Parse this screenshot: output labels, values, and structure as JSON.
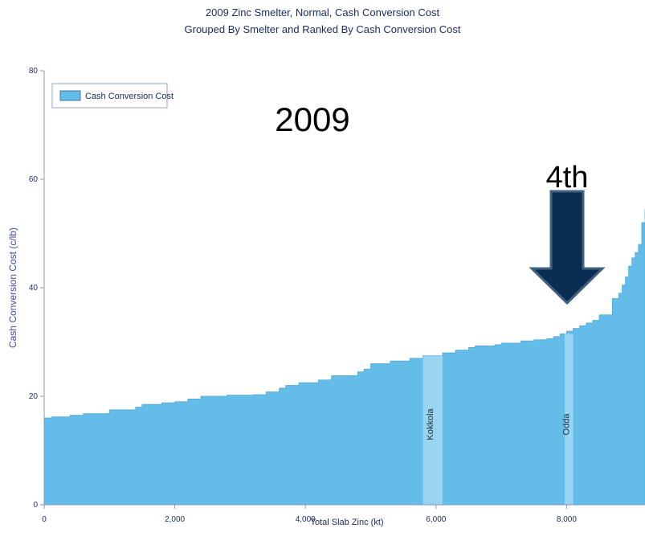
{
  "chart_data": {
    "type": "area",
    "title": "2009 Zinc Smelter, Normal, Cash Conversion Cost",
    "subtitle": "Grouped By Smelter and Ranked By Cash Conversion Cost",
    "xlabel": "Total Slab Zinc (kt)",
    "ylabel": "Cash Conversion Cost (c/lb)",
    "xlim": [
      0,
      9200
    ],
    "ylim": [
      0,
      80
    ],
    "x_ticks": [
      0,
      2000,
      4000,
      6000,
      8000
    ],
    "x_tick_labels": [
      "0",
      "2,000",
      "4,000",
      "6,000",
      "8,000"
    ],
    "y_ticks": [
      0,
      20,
      40,
      60,
      80
    ],
    "y_tick_labels": [
      "0",
      "20",
      "40",
      "60",
      "80"
    ],
    "legend": {
      "entries": [
        "Cash Conversion Cost"
      ],
      "position": "top-left"
    },
    "series": [
      {
        "name": "Cash Conversion Cost",
        "color": "#63bde8",
        "x": [
          0,
          120,
          400,
          600,
          1000,
          1400,
          1500,
          1800,
          2000,
          2200,
          2400,
          2800,
          3200,
          3400,
          3600,
          3700,
          3900,
          4200,
          4400,
          4800,
          4900,
          5000,
          5300,
          5600,
          5800,
          6100,
          6300,
          6500,
          6600,
          6900,
          7000,
          7300,
          7500,
          7700,
          7800,
          7900,
          8000,
          8100,
          8200,
          8300,
          8400,
          8500,
          8700,
          8800,
          8850,
          8900,
          8950,
          9000,
          9050,
          9100,
          9150,
          9200
        ],
        "y": [
          16.0,
          16.2,
          16.5,
          16.8,
          17.5,
          18.0,
          18.5,
          18.8,
          19.0,
          19.5,
          20.0,
          20.2,
          20.3,
          20.8,
          21.5,
          22.0,
          22.5,
          23.0,
          23.8,
          24.5,
          25.0,
          26.0,
          26.5,
          27.0,
          27.5,
          28.0,
          28.5,
          29.0,
          29.3,
          29.5,
          29.8,
          30.2,
          30.4,
          30.6,
          31.0,
          31.5,
          32.0,
          32.5,
          33.0,
          33.5,
          34.0,
          35.0,
          38.0,
          39.0,
          40.5,
          42.0,
          44.0,
          45.5,
          46.5,
          48.0,
          52.0,
          54.5
        ]
      }
    ],
    "highlights": [
      {
        "label": "Kokkola",
        "x_start": 5800,
        "x_end": 6100
      },
      {
        "label": "Odda",
        "x_start": 7970,
        "x_end": 8100
      }
    ],
    "annotations": [
      {
        "text": "2009"
      },
      {
        "text": "4th",
        "arrow": "down",
        "x": 7960
      }
    ]
  }
}
